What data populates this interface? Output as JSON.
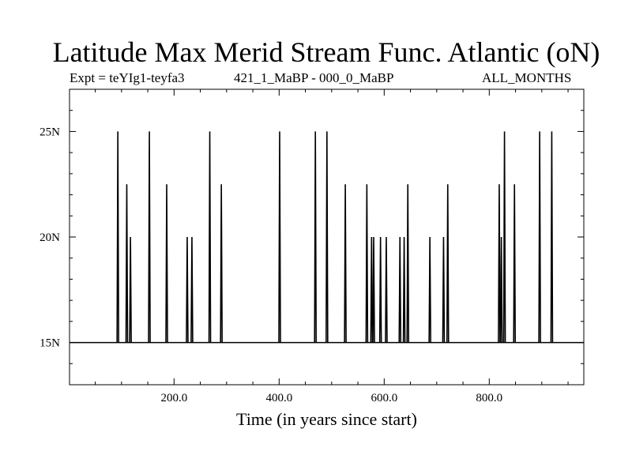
{
  "chart_data": {
    "type": "line",
    "title": "Latitude Max Merid Stream Func. Atlantic (oN)",
    "subtitle_left": "Expt = teYIg1-teyfa3",
    "subtitle_center": "421_1_MaBP - 000_0_MaBP",
    "subtitle_right": "ALL_MONTHS",
    "xlabel": "Time (in years since start)",
    "ylabel": "",
    "xlim": [
      1,
      980
    ],
    "ylim": [
      13,
      27
    ],
    "x_ticks": [
      200,
      400,
      600,
      800
    ],
    "x_tick_labels": [
      "200.0",
      "400.0",
      "600.0",
      "800.0"
    ],
    "y_ticks": [
      15,
      20,
      25
    ],
    "y_tick_labels": [
      "15N",
      "20N",
      "25N"
    ],
    "baseline": 15,
    "grid": false,
    "legend": "none",
    "line_color": "#000000",
    "spikes": [
      {
        "x": 93,
        "y": 25
      },
      {
        "x": 110,
        "y": 22.5
      },
      {
        "x": 117,
        "y": 20
      },
      {
        "x": 153,
        "y": 25
      },
      {
        "x": 186,
        "y": 22.5
      },
      {
        "x": 225,
        "y": 20
      },
      {
        "x": 234,
        "y": 20
      },
      {
        "x": 268,
        "y": 25
      },
      {
        "x": 290,
        "y": 22.5
      },
      {
        "x": 401,
        "y": 25
      },
      {
        "x": 469,
        "y": 25
      },
      {
        "x": 491,
        "y": 25
      },
      {
        "x": 526,
        "y": 22.5
      },
      {
        "x": 567,
        "y": 22.5
      },
      {
        "x": 576,
        "y": 20
      },
      {
        "x": 580,
        "y": 20
      },
      {
        "x": 593,
        "y": 20
      },
      {
        "x": 604,
        "y": 20
      },
      {
        "x": 630,
        "y": 20
      },
      {
        "x": 638,
        "y": 20
      },
      {
        "x": 645,
        "y": 22.5
      },
      {
        "x": 687,
        "y": 20
      },
      {
        "x": 713,
        "y": 20
      },
      {
        "x": 721,
        "y": 22.5
      },
      {
        "x": 819,
        "y": 22.5
      },
      {
        "x": 823,
        "y": 20
      },
      {
        "x": 829,
        "y": 25
      },
      {
        "x": 848,
        "y": 22.5
      },
      {
        "x": 896,
        "y": 25
      },
      {
        "x": 919,
        "y": 25
      }
    ]
  }
}
